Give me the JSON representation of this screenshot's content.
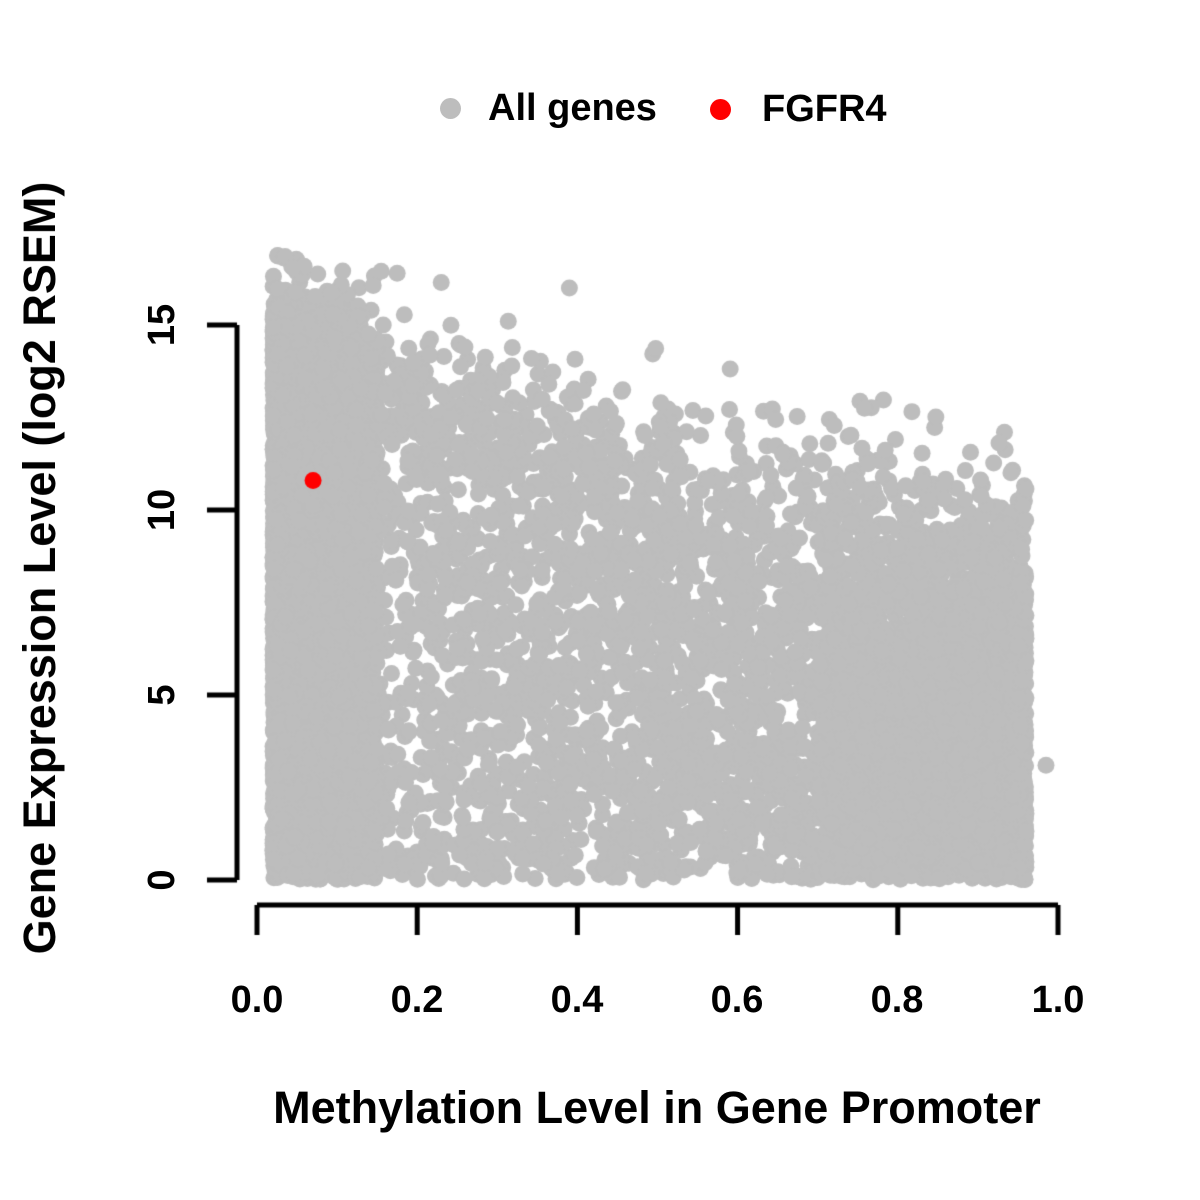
{
  "figure": {
    "background": "#ffffff",
    "text_color": "#000000"
  },
  "legend": {
    "position": "top-center",
    "items": [
      {
        "label": "All genes",
        "color": "#bdbdbd"
      },
      {
        "label": "FGFR4",
        "color": "#ff0000"
      }
    ]
  },
  "axes": {
    "x": {
      "label": "Methylation Level in Gene Promoter",
      "ticks": [
        "0.0",
        "0.2",
        "0.4",
        "0.6",
        "0.8",
        "1.0"
      ],
      "tick_values": [
        0,
        0.2,
        0.4,
        0.6,
        0.8,
        1.0
      ],
      "range": [
        0,
        1
      ]
    },
    "y": {
      "label": "Gene Expression Level (log2 RSEM)",
      "ticks": [
        "0",
        "5",
        "10",
        "15"
      ],
      "tick_values": [
        0,
        5,
        10,
        15
      ],
      "range": [
        0,
        15
      ]
    }
  },
  "chart_data": {
    "type": "scatter",
    "title": "",
    "xlabel": "Methylation Level in Gene Promoter",
    "ylabel": "Gene Expression Level (log2 RSEM)",
    "xlim": [
      0,
      1
    ],
    "ylim": [
      0,
      15
    ],
    "x_tick_values": [
      0,
      0.2,
      0.4,
      0.6,
      0.8,
      1.0
    ],
    "y_tick_values": [
      0,
      5,
      10,
      15
    ],
    "grid": false,
    "legend_position": "top",
    "axis_color": "#000000",
    "series": [
      {
        "name": "All genes",
        "color": "#bdbdbd",
        "marker": "filled-circle",
        "point_radius_px": 8.5,
        "n_points": 9500,
        "x_range": [
          0.02,
          0.96
        ],
        "y_range": [
          0,
          16.9
        ],
        "description": "Dense cloud: expression spans 0-16 at low methylation; upper envelope of expression declines roughly linearly from ~16.5 at methylation 0 to ~11.8 at methylation 0.96; solid bulk below ~13.8-9x (min 6.5); bottom band at y=0 fully dense across x.",
        "distribution": {
          "seed": 20,
          "x_min": 0.02,
          "x_max": 0.96,
          "x_mix": {
            "left_frac": 0.33,
            "uniform_frac": 0.46
          },
          "x_left_span": 0.13,
          "x_left_pow": 1.6,
          "x_right_span": 0.26,
          "x_right_pow": 1.4,
          "env_top_a": 16.6,
          "env_top_b": -5.2,
          "bulk_a": 13.8,
          "bulk_b": -9.0,
          "bulk_min": 6.5,
          "bulk_frac": 0.78,
          "tail_pow": 0.45,
          "extreme_frac": 0.003,
          "extreme_span": 0.5,
          "y_cap": 16.9
        },
        "notable_points": [
          [
            0.985,
            3.1
          ],
          [
            0.035,
            16.85
          ],
          [
            0.045,
            16.55
          ],
          [
            0.155,
            16.45
          ],
          [
            0.175,
            16.4
          ],
          [
            0.23,
            16.15
          ],
          [
            0.39,
            16.0
          ]
        ]
      },
      {
        "name": "FGFR4",
        "color": "#ff0000",
        "marker": "filled-circle",
        "point_radius_px": 8.5,
        "points": [
          [
            0.07,
            10.8
          ]
        ]
      }
    ]
  }
}
